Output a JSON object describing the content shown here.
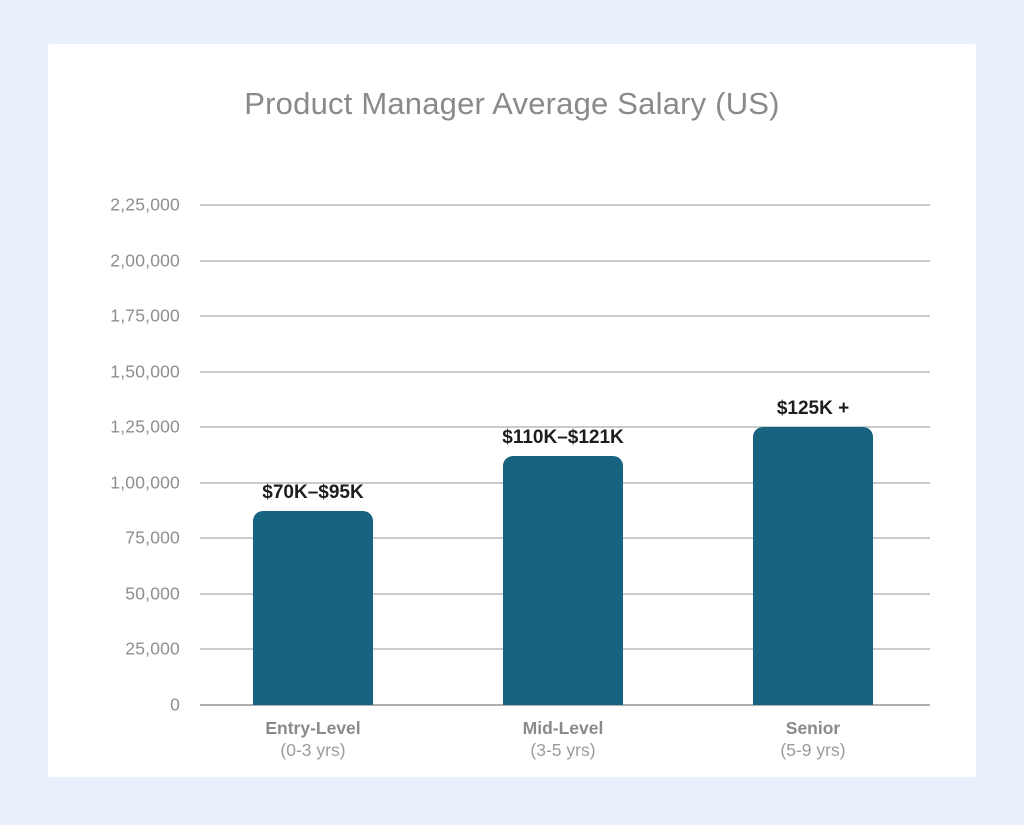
{
  "title": "Product Manager Average Salary (US)",
  "colors": {
    "page_background": "#e7f0fb",
    "card_background": "#ffffff",
    "bar": "#15637F",
    "gridline": "#cbcbcb",
    "baseline": "#aeaeae",
    "title_text": "#8a8a8a",
    "tick_text": "#8e8e8e",
    "value_text": "#1d1d1d",
    "category_text": "#8a8a8a",
    "sublabel_text": "#9b9b9b"
  },
  "chart_data": {
    "type": "bar",
    "title": "Product Manager Average Salary (US)",
    "categories": [
      "Entry-Level",
      "Mid-Level",
      "Senior"
    ],
    "category_sublabels": [
      "(0-3 yrs)",
      "(3-5 yrs)",
      "(5-9 yrs)"
    ],
    "values": [
      87500,
      112000,
      125000
    ],
    "bar_labels": [
      "$70K–$95K",
      "$110K–$121K",
      "$125K +"
    ],
    "xlabel": "",
    "ylabel": "",
    "ylim": [
      0,
      225000
    ],
    "ytick_interval": 25000,
    "yticks": [
      0,
      25000,
      50000,
      75000,
      100000,
      125000,
      150000,
      175000,
      200000,
      225000
    ],
    "ytick_labels": [
      "0",
      "25,000",
      "50,000",
      "75,000",
      "1,00,000",
      "1,25,000",
      "1,50,000",
      "1,75,000",
      "2,00,000",
      "2,25,000"
    ],
    "grid": true,
    "legend": false
  }
}
